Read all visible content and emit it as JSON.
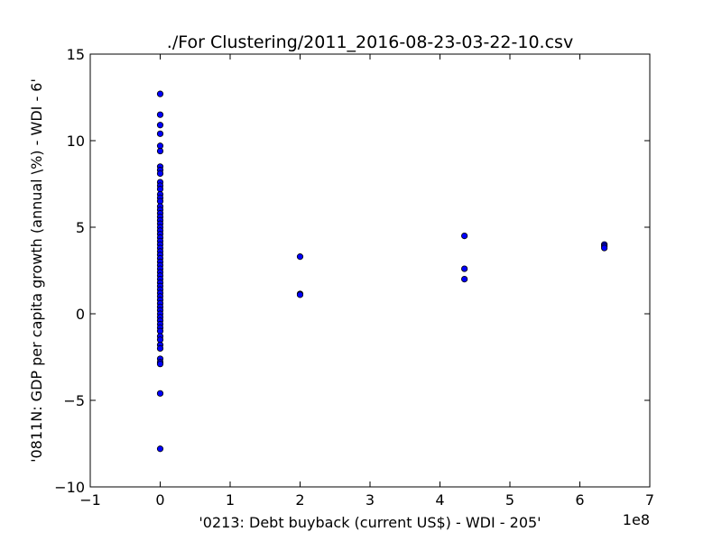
{
  "chart_data": {
    "type": "scatter",
    "title": "./For Clustering/2011_2016-08-23-03-22-10.csv",
    "xlabel": "'0213: Debt buyback  (current US$) - WDI - 205'",
    "ylabel": "'0811N: GDP per capita growth  (annual \\%) - WDI - 6'",
    "x_offset_label": "1e8",
    "xlim": [
      -1,
      7
    ],
    "ylim": [
      -10,
      15
    ],
    "x_units_note": "x values in units of 1e8",
    "xticks": [
      -1,
      0,
      1,
      2,
      3,
      4,
      5,
      6,
      7
    ],
    "xtick_labels": [
      "−1",
      "0",
      "1",
      "2",
      "3",
      "4",
      "5",
      "6",
      "7"
    ],
    "yticks": [
      -10,
      -5,
      0,
      5,
      10,
      15
    ],
    "ytick_labels": [
      "−10",
      "−5",
      "0",
      "5",
      "10",
      "15"
    ],
    "grid": false,
    "marker_color": "#0000ff",
    "marker_edge": "#000000",
    "points": [
      [
        0,
        12.7
      ],
      [
        0,
        11.5
      ],
      [
        0,
        10.9
      ],
      [
        0,
        10.4
      ],
      [
        0,
        9.7
      ],
      [
        0,
        9.4
      ],
      [
        0,
        8.5
      ],
      [
        0,
        8.3
      ],
      [
        0,
        8.1
      ],
      [
        0,
        7.6
      ],
      [
        0,
        7.4
      ],
      [
        0,
        7.2
      ],
      [
        0,
        6.9
      ],
      [
        0,
        6.7
      ],
      [
        0,
        6.5
      ],
      [
        0,
        6.2
      ],
      [
        0,
        6.0
      ],
      [
        0,
        5.8
      ],
      [
        0,
        5.6
      ],
      [
        0,
        5.4
      ],
      [
        0,
        5.2
      ],
      [
        0,
        5.0
      ],
      [
        0,
        4.8
      ],
      [
        0,
        4.6
      ],
      [
        0,
        4.4
      ],
      [
        0,
        4.2
      ],
      [
        0,
        4.0
      ],
      [
        0,
        3.8
      ],
      [
        0,
        3.6
      ],
      [
        0,
        3.4
      ],
      [
        0,
        3.2
      ],
      [
        0,
        3.0
      ],
      [
        0,
        2.8
      ],
      [
        0,
        2.6
      ],
      [
        0,
        2.4
      ],
      [
        0,
        2.2
      ],
      [
        0,
        2.0
      ],
      [
        0,
        1.8
      ],
      [
        0,
        1.6
      ],
      [
        0,
        1.4
      ],
      [
        0,
        1.2
      ],
      [
        0,
        1.0
      ],
      [
        0,
        0.8
      ],
      [
        0,
        0.6
      ],
      [
        0,
        0.4
      ],
      [
        0,
        0.2
      ],
      [
        0,
        0.0
      ],
      [
        0,
        -0.2
      ],
      [
        0,
        -0.4
      ],
      [
        0,
        -0.6
      ],
      [
        0,
        -0.8
      ],
      [
        0,
        -1.0
      ],
      [
        0,
        -1.3
      ],
      [
        0,
        -1.5
      ],
      [
        0,
        -1.8
      ],
      [
        0,
        -2.0
      ],
      [
        0,
        -2.6
      ],
      [
        0,
        -2.8
      ],
      [
        0,
        -2.9
      ],
      [
        0,
        -4.6
      ],
      [
        0,
        -7.8
      ],
      [
        2.0,
        3.3
      ],
      [
        2.0,
        1.15
      ],
      [
        2.0,
        1.1
      ],
      [
        4.35,
        4.5
      ],
      [
        4.35,
        2.6
      ],
      [
        4.35,
        2.0
      ],
      [
        6.35,
        4.0
      ],
      [
        6.35,
        3.9
      ],
      [
        6.35,
        3.8
      ]
    ]
  }
}
